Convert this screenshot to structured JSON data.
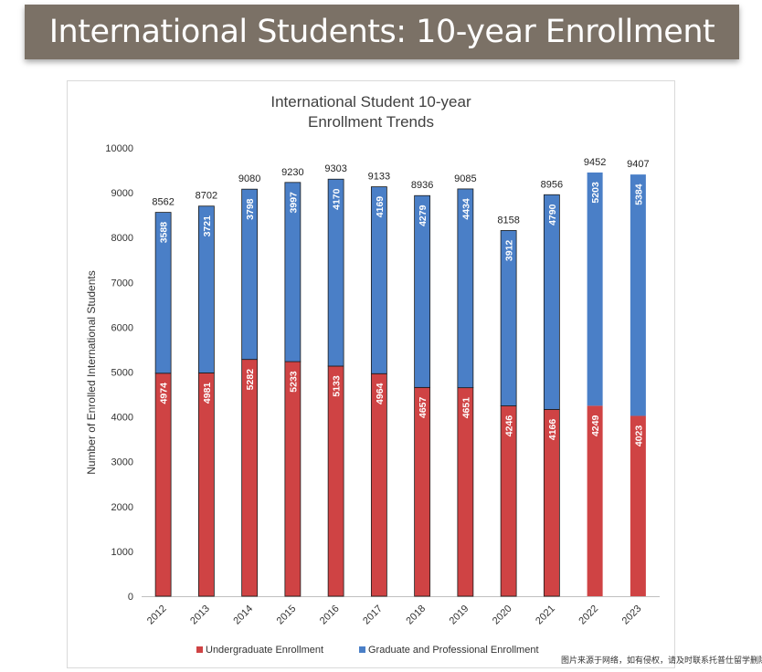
{
  "banner": {
    "title": "International Students: 10-year Enrollment"
  },
  "watermark": "图片来源于网络，如有侵权，请及时联系托普仕留学删除",
  "colors": {
    "undergrad": "#cf4344",
    "graduate": "#4a7fc7",
    "banner_bg": "#7b7166"
  },
  "chart_data": {
    "type": "bar",
    "stacked": true,
    "title": "International Student 10-year Enrollment Trends",
    "title_lines": [
      "International Student 10-year",
      "Enrollment Trends"
    ],
    "xlabel": "",
    "ylabel": "Number of Enrolled International Students",
    "ylim": [
      0,
      10000
    ],
    "yticks": [
      0,
      1000,
      2000,
      3000,
      4000,
      5000,
      6000,
      7000,
      8000,
      9000,
      10000
    ],
    "grid": false,
    "legend_position": "bottom",
    "categories": [
      "2012",
      "2013",
      "2014",
      "2015",
      "2016",
      "2017",
      "2018",
      "2019",
      "2020",
      "2021",
      "2022",
      "2023"
    ],
    "series": [
      {
        "name": "Undergraduate Enrollment",
        "color": "#cf4344",
        "values": [
          4974,
          4981,
          5282,
          5233,
          5133,
          4964,
          4657,
          4651,
          4246,
          4166,
          4249,
          4023
        ]
      },
      {
        "name": "Graduate and Professional Enrollment",
        "color": "#4a7fc7",
        "values": [
          3588,
          3721,
          3798,
          3997,
          4170,
          4169,
          4279,
          4434,
          3912,
          4790,
          5203,
          5384
        ]
      }
    ],
    "totals": [
      8562,
      8702,
      9080,
      9230,
      9303,
      9133,
      8936,
      9085,
      8158,
      8956,
      9452,
      9407
    ]
  }
}
